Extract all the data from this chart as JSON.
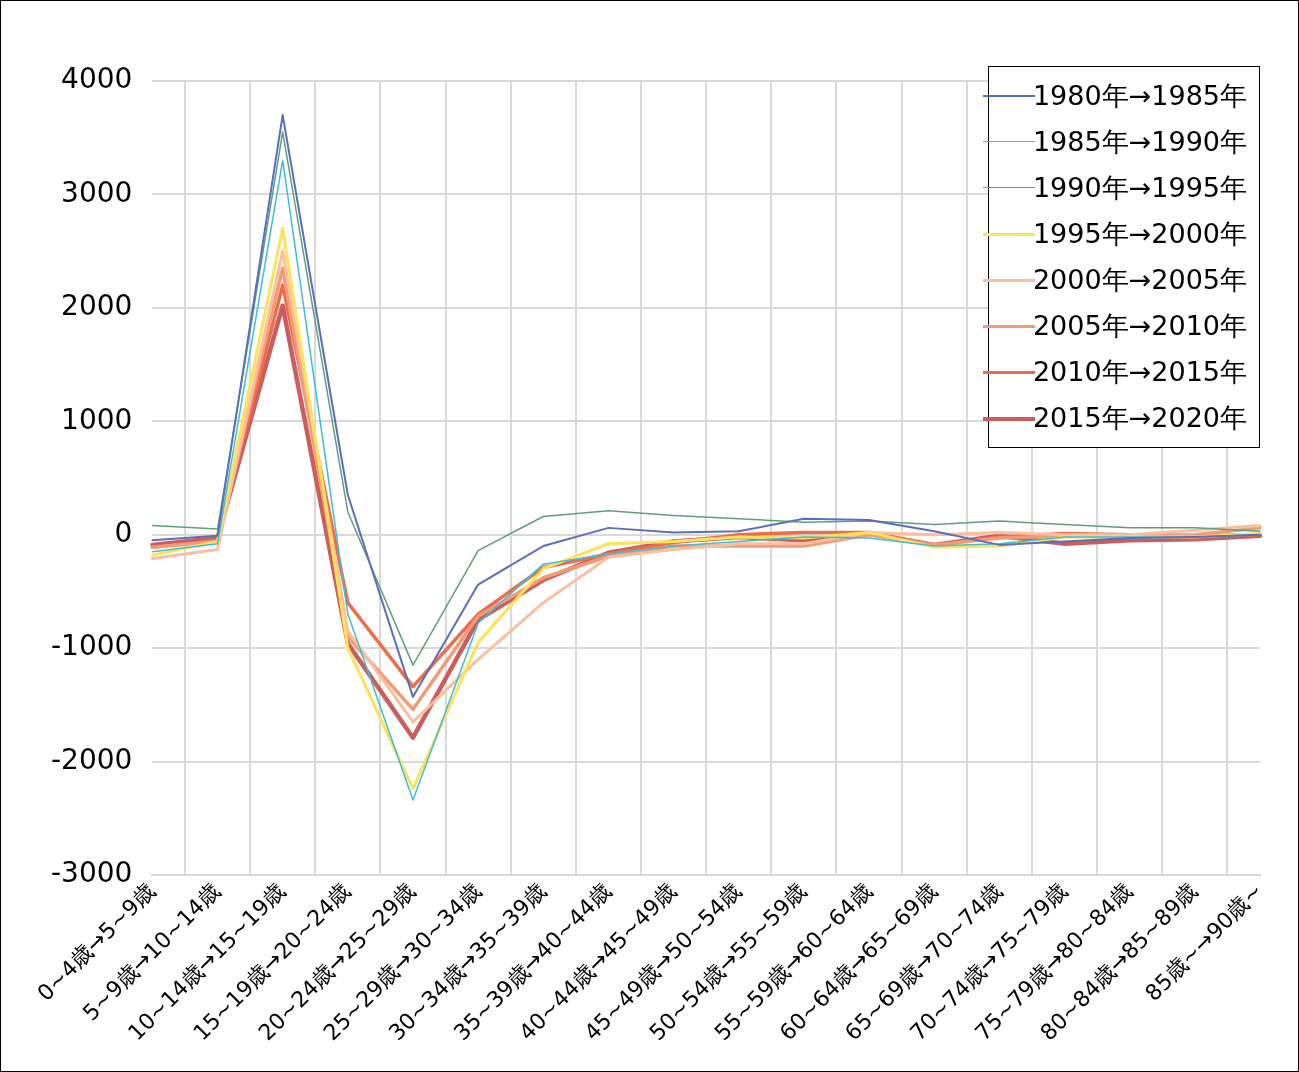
{
  "chart_data": {
    "type": "line",
    "categories": [
      "0~4歳→5~9歳",
      "5~9歳→10~14歳",
      "10~14歳→15~19歳",
      "15~19歳→20~24歳",
      "20~24歳→25~29歳",
      "25~29歳→30~34歳",
      "30~34歳→35~39歳",
      "35~39歳→40~44歳",
      "40~44歳→45~49歳",
      "45~49歳→50~54歳",
      "50~54歳→55~59歳",
      "55~59歳→60~64歳",
      "60~64歳→65~69歳",
      "65~69歳→70~74歳",
      "70~74歳→75~79歳",
      "75~79歳→80~84歳",
      "80~84歳→85~89歳",
      "85歳~→90歳~"
    ],
    "series": [
      {
        "name": "1980年→1985年",
        "color": "#5b6fbf",
        "values": [
          -50,
          -10,
          3700,
          350,
          -1430,
          -440,
          -100,
          60,
          20,
          30,
          140,
          130,
          30,
          -90,
          -60,
          -30,
          -20,
          0
        ]
      },
      {
        "name": "1985年→1990年",
        "color": "#3bbfd8",
        "values": [
          -150,
          -80,
          3300,
          -700,
          -2340,
          -780,
          -260,
          -170,
          -100,
          -60,
          -20,
          -30,
          -100,
          -80,
          -20,
          -20,
          -20,
          0
        ]
      },
      {
        "name": "1990年→1995年",
        "color": "#5fa07a",
        "values": [
          80,
          50,
          3550,
          200,
          -1150,
          -140,
          160,
          210,
          170,
          140,
          110,
          120,
          90,
          120,
          90,
          60,
          60,
          30
        ]
      },
      {
        "name": "1995年→2000年",
        "color": "#fde25a",
        "values": [
          -180,
          -60,
          2700,
          -1000,
          -2240,
          -950,
          -300,
          -80,
          -60,
          -20,
          -30,
          20,
          -110,
          -100,
          -20,
          -20,
          -20,
          10
        ]
      },
      {
        "name": "2000年→2005年",
        "color": "#fbbf9f",
        "values": [
          -210,
          -130,
          2500,
          -850,
          -1650,
          -1100,
          -600,
          -200,
          -130,
          -80,
          -80,
          20,
          0,
          20,
          0,
          0,
          40,
          80
        ]
      },
      {
        "name": "2005年→2010年",
        "color": "#f39a76",
        "values": [
          -110,
          -60,
          2350,
          -900,
          -1540,
          -720,
          -380,
          -190,
          -100,
          -100,
          -100,
          0,
          -90,
          -30,
          -10,
          -10,
          0,
          60
        ]
      },
      {
        "name": "2010年→2015年",
        "color": "#ef6c4b",
        "values": [
          -110,
          -50,
          2200,
          -600,
          -1340,
          -700,
          -290,
          -170,
          -70,
          0,
          20,
          20,
          -90,
          -20,
          10,
          0,
          -10,
          0
        ]
      },
      {
        "name": "2015年→2020年",
        "color": "#cd5c5c",
        "values": [
          -90,
          -30,
          2020,
          -960,
          -1790,
          -750,
          -400,
          -160,
          -60,
          -20,
          -50,
          10,
          -90,
          -10,
          -80,
          -50,
          -40,
          -10
        ]
      }
    ],
    "ylim": [
      -3000,
      4000
    ],
    "yticks": [
      -3000,
      -2000,
      -1000,
      0,
      1000,
      2000,
      3000,
      4000
    ],
    "grid": true,
    "legend": "top right",
    "marker": "none",
    "line_style": "solid"
  }
}
